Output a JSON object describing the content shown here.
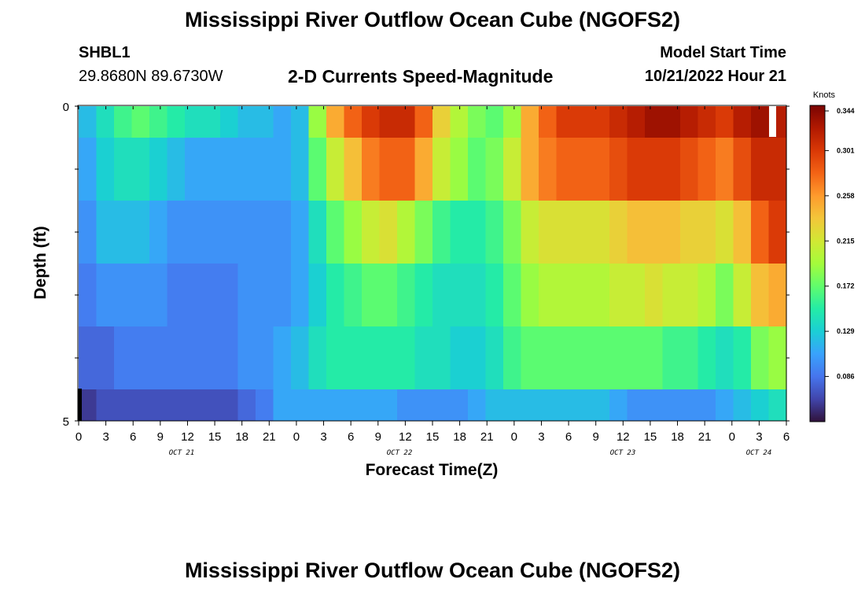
{
  "header": {
    "title": "Mississippi River Outflow Ocean Cube (NGOFS2)",
    "station_id": "SHBL1",
    "station_coords": "29.8680N  89.6730W",
    "subtitle": "2-D Currents Speed-Magnitude",
    "model_start_label": "Model Start Time",
    "model_start_value": "10/21/2022 Hour 21"
  },
  "footer": {
    "title_repeat": "Mississippi River Outflow Ocean Cube (NGOFS2)"
  },
  "chart_data": {
    "type": "heatmap",
    "xlabel": "Forecast Time(Z)",
    "ylabel": "Depth (ft)",
    "x_range_hours": [
      0,
      78
    ],
    "x_ticks": [
      "0",
      "3",
      "6",
      "9",
      "12",
      "15",
      "18",
      "21",
      "0",
      "3",
      "6",
      "9",
      "12",
      "15",
      "18",
      "21",
      "0",
      "3",
      "6",
      "9",
      "12",
      "15",
      "18",
      "21",
      "0",
      "3",
      "6"
    ],
    "month_labels": [
      "OCT 21",
      "OCT 22",
      "OCT 23",
      "OCT 24"
    ],
    "y_tick_labels": [
      "0",
      "5"
    ],
    "ylim": [
      0,
      5
    ],
    "colorbar": {
      "title": "Knots",
      "ticks": [
        0.344,
        0.301,
        0.258,
        0.215,
        0.172,
        0.129,
        0.086
      ],
      "range": [
        0.043,
        0.344
      ]
    },
    "columns_per_row": 40,
    "rows": [
      {
        "depth_range": [
          0.0,
          0.5
        ],
        "values": [
          0.12,
          0.14,
          0.16,
          0.17,
          0.16,
          0.15,
          0.14,
          0.14,
          0.13,
          0.12,
          0.12,
          0.11,
          0.12,
          0.19,
          0.25,
          0.28,
          0.3,
          0.31,
          0.31,
          0.28,
          0.23,
          0.2,
          0.18,
          0.17,
          0.19,
          0.25,
          0.28,
          0.3,
          0.3,
          0.3,
          0.31,
          0.32,
          0.33,
          0.33,
          0.32,
          0.31,
          0.3,
          0.32,
          0.33,
          0.32
        ]
      },
      {
        "depth_range": [
          0.5,
          1.5
        ],
        "values": [
          0.11,
          0.13,
          0.14,
          0.14,
          0.13,
          0.12,
          0.11,
          0.11,
          0.11,
          0.11,
          0.11,
          0.11,
          0.12,
          0.17,
          0.21,
          0.24,
          0.27,
          0.28,
          0.28,
          0.25,
          0.21,
          0.19,
          0.17,
          0.18,
          0.21,
          0.25,
          0.27,
          0.28,
          0.28,
          0.28,
          0.29,
          0.3,
          0.3,
          0.3,
          0.29,
          0.28,
          0.27,
          0.29,
          0.31,
          0.31
        ]
      },
      {
        "depth_range": [
          1.5,
          2.5
        ],
        "values": [
          0.1,
          0.12,
          0.12,
          0.12,
          0.11,
          0.1,
          0.1,
          0.1,
          0.1,
          0.1,
          0.1,
          0.1,
          0.11,
          0.14,
          0.17,
          0.19,
          0.21,
          0.22,
          0.2,
          0.18,
          0.16,
          0.15,
          0.15,
          0.16,
          0.18,
          0.21,
          0.22,
          0.22,
          0.22,
          0.22,
          0.23,
          0.24,
          0.24,
          0.24,
          0.23,
          0.23,
          0.22,
          0.24,
          0.28,
          0.3
        ]
      },
      {
        "depth_range": [
          2.5,
          3.5
        ],
        "values": [
          0.09,
          0.1,
          0.1,
          0.1,
          0.1,
          0.09,
          0.09,
          0.09,
          0.09,
          0.1,
          0.1,
          0.1,
          0.11,
          0.13,
          0.15,
          0.16,
          0.17,
          0.17,
          0.16,
          0.15,
          0.14,
          0.14,
          0.14,
          0.15,
          0.17,
          0.19,
          0.2,
          0.2,
          0.2,
          0.2,
          0.21,
          0.21,
          0.22,
          0.21,
          0.21,
          0.2,
          0.18,
          0.21,
          0.24,
          0.25
        ]
      },
      {
        "depth_range": [
          3.5,
          4.5
        ],
        "values": [
          0.08,
          0.08,
          0.09,
          0.09,
          0.09,
          0.09,
          0.09,
          0.09,
          0.09,
          0.1,
          0.1,
          0.11,
          0.12,
          0.14,
          0.15,
          0.15,
          0.15,
          0.15,
          0.15,
          0.14,
          0.14,
          0.13,
          0.13,
          0.14,
          0.16,
          0.17,
          0.17,
          0.17,
          0.17,
          0.17,
          0.17,
          0.17,
          0.17,
          0.16,
          0.16,
          0.15,
          0.14,
          0.15,
          0.18,
          0.19
        ]
      },
      {
        "depth_range": [
          4.5,
          5.0
        ],
        "values": [
          0.06,
          0.07,
          0.07,
          0.07,
          0.07,
          0.07,
          0.07,
          0.07,
          0.07,
          0.08,
          0.09,
          0.11,
          0.11,
          0.11,
          0.11,
          0.11,
          0.11,
          0.11,
          0.1,
          0.1,
          0.1,
          0.1,
          0.11,
          0.12,
          0.12,
          0.12,
          0.12,
          0.12,
          0.12,
          0.12,
          0.11,
          0.1,
          0.1,
          0.1,
          0.1,
          0.1,
          0.11,
          0.12,
          0.13,
          0.14
        ]
      }
    ],
    "colormap": [
      "#30123b",
      "#4145ab",
      "#4675ed",
      "#39a2fc",
      "#1bcfd4",
      "#24eca6",
      "#61fc6c",
      "#a4fc3b",
      "#d1e834",
      "#f3c63a",
      "#fe9b2d",
      "#f36315",
      "#d93806",
      "#b11901",
      "#7a0402"
    ]
  }
}
